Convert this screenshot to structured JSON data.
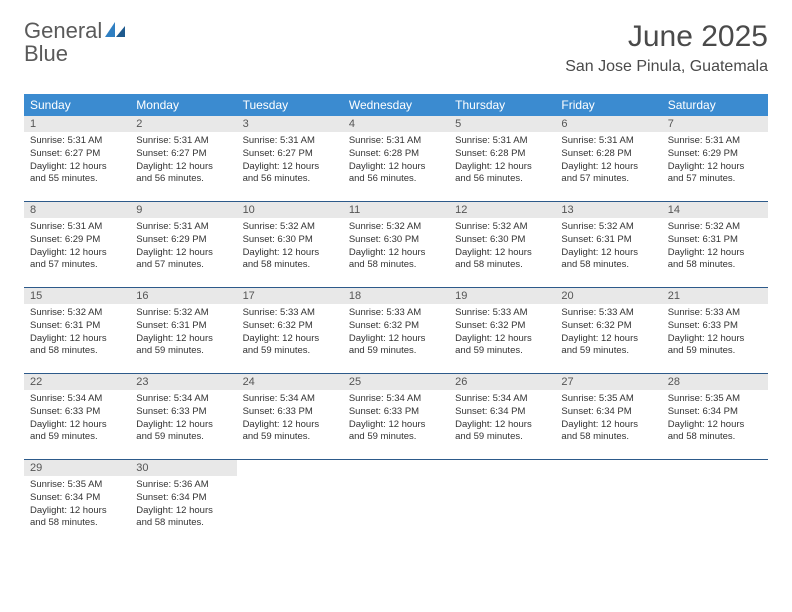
{
  "brand": {
    "part1": "General",
    "part2": "Blue"
  },
  "title": "June 2025",
  "location": "San Jose Pinula, Guatemala",
  "colors": {
    "header_bg": "#3b8bd0",
    "header_text": "#ffffff",
    "daynum_bg": "#e8e8e8",
    "border": "#2d5a8a",
    "logo_gray": "#5a5a5a",
    "logo_blue": "#2f7fc2"
  },
  "weekdays": [
    "Sunday",
    "Monday",
    "Tuesday",
    "Wednesday",
    "Thursday",
    "Friday",
    "Saturday"
  ],
  "days": [
    {
      "n": "1",
      "sunrise": "5:31 AM",
      "sunset": "6:27 PM",
      "dl": "12 hours and 55 minutes."
    },
    {
      "n": "2",
      "sunrise": "5:31 AM",
      "sunset": "6:27 PM",
      "dl": "12 hours and 56 minutes."
    },
    {
      "n": "3",
      "sunrise": "5:31 AM",
      "sunset": "6:27 PM",
      "dl": "12 hours and 56 minutes."
    },
    {
      "n": "4",
      "sunrise": "5:31 AM",
      "sunset": "6:28 PM",
      "dl": "12 hours and 56 minutes."
    },
    {
      "n": "5",
      "sunrise": "5:31 AM",
      "sunset": "6:28 PM",
      "dl": "12 hours and 56 minutes."
    },
    {
      "n": "6",
      "sunrise": "5:31 AM",
      "sunset": "6:28 PM",
      "dl": "12 hours and 57 minutes."
    },
    {
      "n": "7",
      "sunrise": "5:31 AM",
      "sunset": "6:29 PM",
      "dl": "12 hours and 57 minutes."
    },
    {
      "n": "8",
      "sunrise": "5:31 AM",
      "sunset": "6:29 PM",
      "dl": "12 hours and 57 minutes."
    },
    {
      "n": "9",
      "sunrise": "5:31 AM",
      "sunset": "6:29 PM",
      "dl": "12 hours and 57 minutes."
    },
    {
      "n": "10",
      "sunrise": "5:32 AM",
      "sunset": "6:30 PM",
      "dl": "12 hours and 58 minutes."
    },
    {
      "n": "11",
      "sunrise": "5:32 AM",
      "sunset": "6:30 PM",
      "dl": "12 hours and 58 minutes."
    },
    {
      "n": "12",
      "sunrise": "5:32 AM",
      "sunset": "6:30 PM",
      "dl": "12 hours and 58 minutes."
    },
    {
      "n": "13",
      "sunrise": "5:32 AM",
      "sunset": "6:31 PM",
      "dl": "12 hours and 58 minutes."
    },
    {
      "n": "14",
      "sunrise": "5:32 AM",
      "sunset": "6:31 PM",
      "dl": "12 hours and 58 minutes."
    },
    {
      "n": "15",
      "sunrise": "5:32 AM",
      "sunset": "6:31 PM",
      "dl": "12 hours and 58 minutes."
    },
    {
      "n": "16",
      "sunrise": "5:32 AM",
      "sunset": "6:31 PM",
      "dl": "12 hours and 59 minutes."
    },
    {
      "n": "17",
      "sunrise": "5:33 AM",
      "sunset": "6:32 PM",
      "dl": "12 hours and 59 minutes."
    },
    {
      "n": "18",
      "sunrise": "5:33 AM",
      "sunset": "6:32 PM",
      "dl": "12 hours and 59 minutes."
    },
    {
      "n": "19",
      "sunrise": "5:33 AM",
      "sunset": "6:32 PM",
      "dl": "12 hours and 59 minutes."
    },
    {
      "n": "20",
      "sunrise": "5:33 AM",
      "sunset": "6:32 PM",
      "dl": "12 hours and 59 minutes."
    },
    {
      "n": "21",
      "sunrise": "5:33 AM",
      "sunset": "6:33 PM",
      "dl": "12 hours and 59 minutes."
    },
    {
      "n": "22",
      "sunrise": "5:34 AM",
      "sunset": "6:33 PM",
      "dl": "12 hours and 59 minutes."
    },
    {
      "n": "23",
      "sunrise": "5:34 AM",
      "sunset": "6:33 PM",
      "dl": "12 hours and 59 minutes."
    },
    {
      "n": "24",
      "sunrise": "5:34 AM",
      "sunset": "6:33 PM",
      "dl": "12 hours and 59 minutes."
    },
    {
      "n": "25",
      "sunrise": "5:34 AM",
      "sunset": "6:33 PM",
      "dl": "12 hours and 59 minutes."
    },
    {
      "n": "26",
      "sunrise": "5:34 AM",
      "sunset": "6:34 PM",
      "dl": "12 hours and 59 minutes."
    },
    {
      "n": "27",
      "sunrise": "5:35 AM",
      "sunset": "6:34 PM",
      "dl": "12 hours and 58 minutes."
    },
    {
      "n": "28",
      "sunrise": "5:35 AM",
      "sunset": "6:34 PM",
      "dl": "12 hours and 58 minutes."
    },
    {
      "n": "29",
      "sunrise": "5:35 AM",
      "sunset": "6:34 PM",
      "dl": "12 hours and 58 minutes."
    },
    {
      "n": "30",
      "sunrise": "5:36 AM",
      "sunset": "6:34 PM",
      "dl": "12 hours and 58 minutes."
    }
  ],
  "labels": {
    "sunrise": "Sunrise:",
    "sunset": "Sunset:",
    "daylight": "Daylight:"
  }
}
